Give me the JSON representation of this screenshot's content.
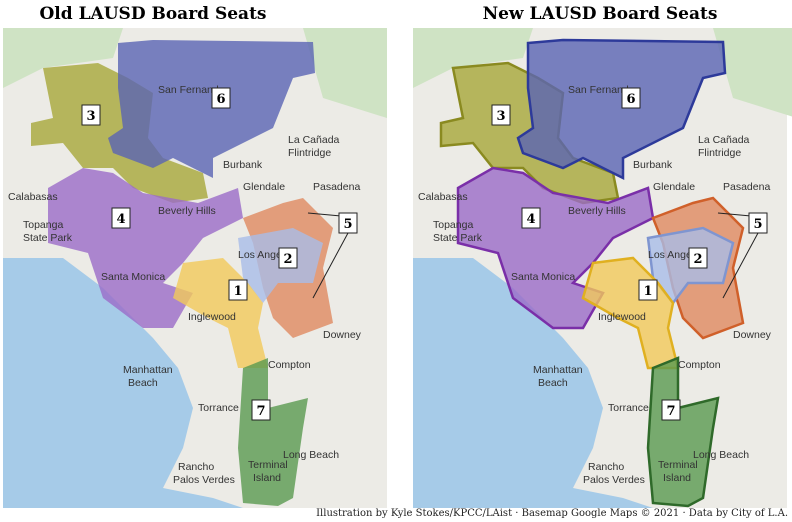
{
  "maps": [
    {
      "title": "Old LAUSD Board Seats",
      "districts": [
        "3",
        "6",
        "4",
        "5",
        "2",
        "1",
        "7"
      ],
      "places": [
        "San Fernando",
        "Burbank",
        "La Cañada",
        "Flintridge",
        "Glendale",
        "Pasadena",
        "Calabasas",
        "Topanga",
        "State Park",
        "Beverly Hills",
        "Los Angeles",
        "Santa Monica",
        "Inglewood",
        "Downey",
        "Manhattan",
        "Beach",
        "Compton",
        "Torrance",
        "Long Beach",
        "Rancho",
        "Palos Verdes",
        "Terminal",
        "Island"
      ]
    },
    {
      "title": "New LAUSD Board Seats",
      "districts": [
        "3",
        "6",
        "4",
        "5",
        "2",
        "1",
        "7"
      ],
      "places": [
        "San Fernando",
        "Burbank",
        "La Cañada",
        "Flintridge",
        "Glendale",
        "Pasadena",
        "Calabasas",
        "Topanga",
        "State Park",
        "Beverly Hills",
        "Los Angeles",
        "Santa Monica",
        "Inglewood",
        "Downey",
        "Manhattan",
        "Beach",
        "Compton",
        "Torrance",
        "Long Beach",
        "Rancho",
        "Palos Verdes",
        "Terminal",
        "Island"
      ]
    }
  ],
  "credit": "Illustration by Kyle Stokes/KPCC/LAist · Basemap Google Maps © 2021 · Data by City of L.A."
}
